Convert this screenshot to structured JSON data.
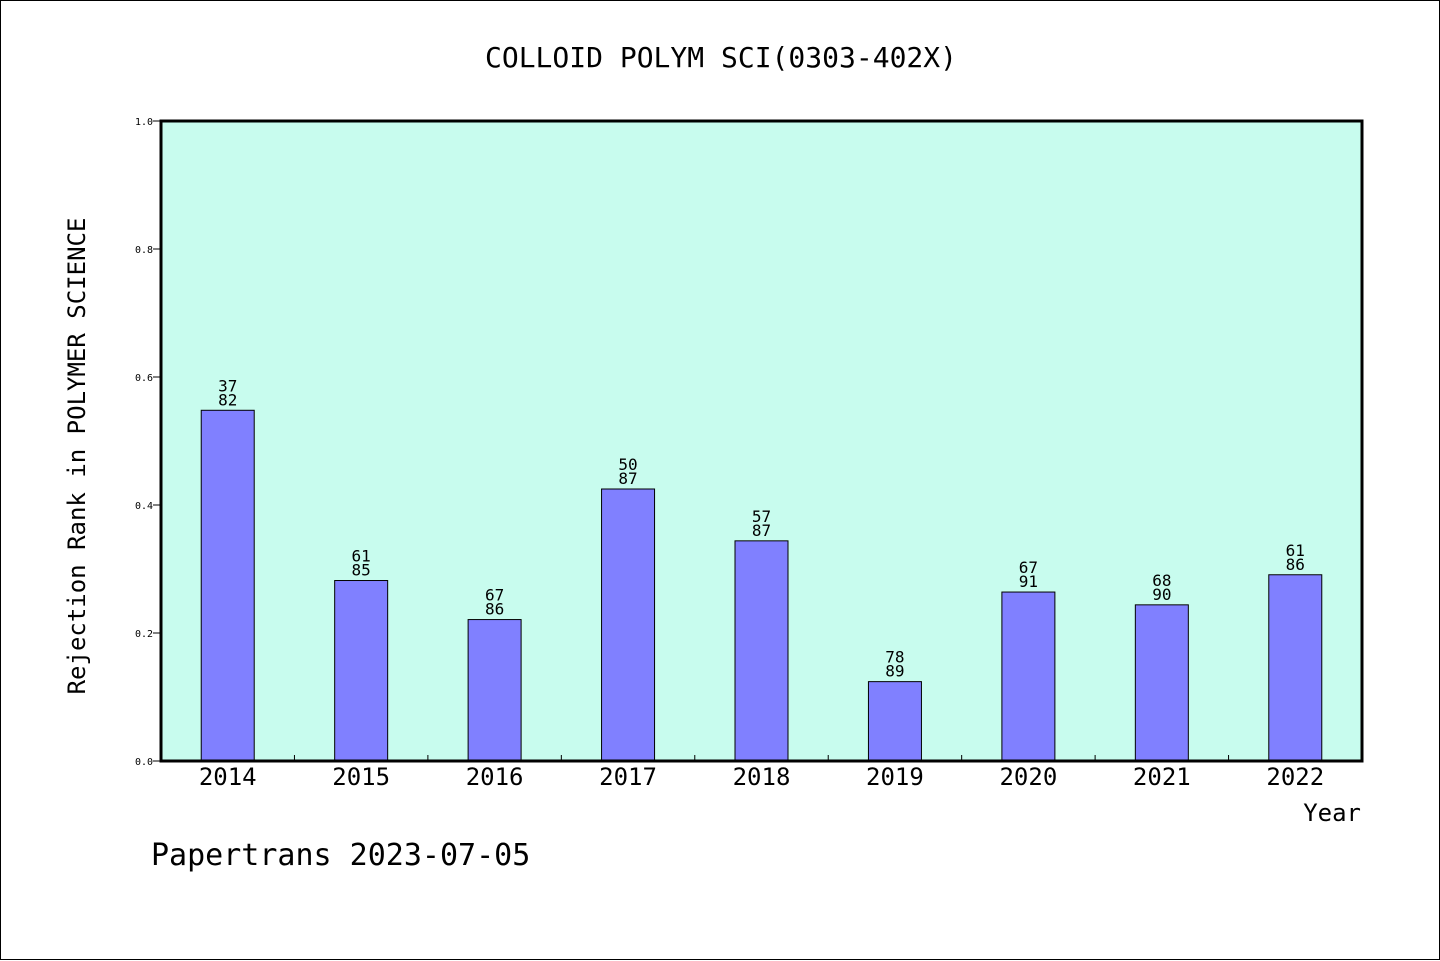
{
  "chart_data": {
    "type": "bar",
    "title": "COLLOID POLYM SCI(0303-402X)",
    "xlabel": "Year",
    "ylabel": "Rejection Rank in POLYMER SCIENCE",
    "ylim": [
      0,
      1
    ],
    "yticks": [
      "0.0",
      "0.2",
      "0.4",
      "0.6",
      "0.8",
      "1.0"
    ],
    "categories": [
      "2014",
      "2015",
      "2016",
      "2017",
      "2018",
      "2019",
      "2020",
      "2021",
      "2022"
    ],
    "values": [
      0.548,
      0.282,
      0.221,
      0.425,
      0.344,
      0.124,
      0.264,
      0.244,
      0.291
    ],
    "labels_top": [
      "37",
      "61",
      "67",
      "50",
      "57",
      "78",
      "67",
      "68",
      "61"
    ],
    "labels_bottom": [
      "82",
      "85",
      "86",
      "87",
      "87",
      "89",
      "91",
      "90",
      "86"
    ],
    "colors": {
      "plot_background": "#c8fcee",
      "bar": "#8080ff"
    },
    "grid": false,
    "legend": "none"
  },
  "footer": {
    "text": "Papertrans 2023-07-05"
  }
}
